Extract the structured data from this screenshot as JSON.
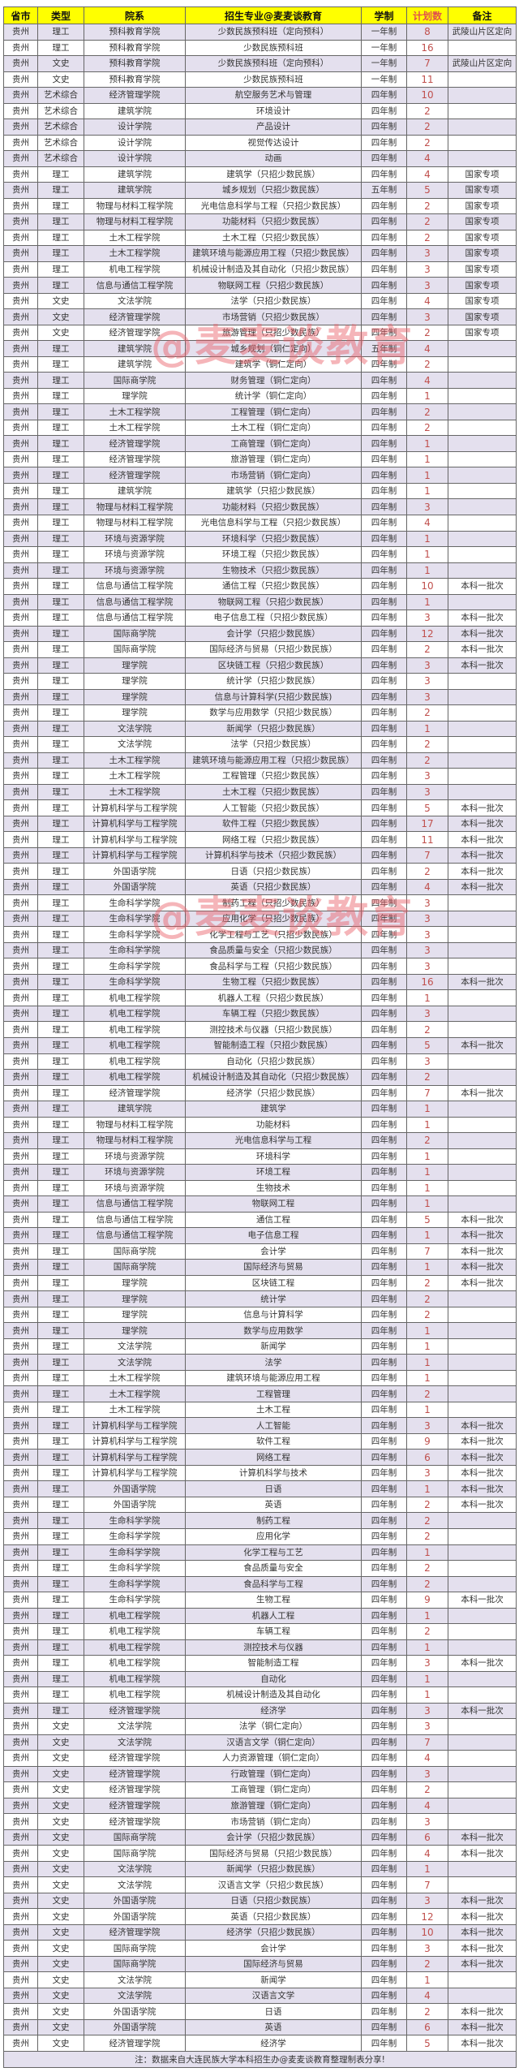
{
  "colors": {
    "header_bg": "#ffff00",
    "stripe": "#e4e0ee",
    "count": "#c0504d"
  },
  "headers": [
    "省市",
    "类型",
    "院系",
    "招生专业@麦麦谈教育",
    "学制",
    "计划数",
    "备注"
  ],
  "province": "贵州",
  "rows": [
    [
      "理工",
      "预科教育学院",
      "少数民族预科班（定向预科）",
      "一年制",
      "8",
      "武陵山片区定向"
    ],
    [
      "理工",
      "预科教育学院",
      "少数民族预科班",
      "一年制",
      "16",
      ""
    ],
    [
      "文史",
      "预科教育学院",
      "少数民族预科班（定向预科）",
      "一年制",
      "7",
      "武陵山片区定向"
    ],
    [
      "文史",
      "预科教育学院",
      "少数民族预科班",
      "一年制",
      "11",
      ""
    ],
    [
      "艺术综合",
      "经济管理学院",
      "航空服务艺术与管理",
      "四年制",
      "10",
      ""
    ],
    [
      "艺术综合",
      "建筑学院",
      "环境设计",
      "四年制",
      "2",
      ""
    ],
    [
      "艺术综合",
      "设计学院",
      "产品设计",
      "四年制",
      "2",
      ""
    ],
    [
      "艺术综合",
      "设计学院",
      "视觉传达设计",
      "四年制",
      "2",
      ""
    ],
    [
      "艺术综合",
      "设计学院",
      "动画",
      "四年制",
      "4",
      ""
    ],
    [
      "理工",
      "建筑学院",
      "建筑学（只招少数民族）",
      "四年制",
      "4",
      "国家专项"
    ],
    [
      "理工",
      "建筑学院",
      "城乡规划（只招少数民族）",
      "五年制",
      "5",
      "国家专项"
    ],
    [
      "理工",
      "物理与材料工程学院",
      "光电信息科学与工程（只招少数民族）",
      "四年制",
      "2",
      "国家专项"
    ],
    [
      "理工",
      "物理与材料工程学院",
      "功能材料（只招少数民族）",
      "四年制",
      "2",
      "国家专项"
    ],
    [
      "理工",
      "土木工程学院",
      "土木工程（只招少数民族）",
      "四年制",
      "2",
      "国家专项"
    ],
    [
      "理工",
      "土木工程学院",
      "建筑环境与能源应用工程（只招少数民族）",
      "四年制",
      "3",
      "国家专项"
    ],
    [
      "理工",
      "机电工程学院",
      "机械设计制造及其自动化（只招少数民族）",
      "四年制",
      "3",
      "国家专项"
    ],
    [
      "理工",
      "信息与通信工程学院",
      "物联网工程（只招少数民族）",
      "四年制",
      "3",
      "国家专项"
    ],
    [
      "文史",
      "文法学院",
      "法学（只招少数民族）",
      "四年制",
      "4",
      "国家专项"
    ],
    [
      "文史",
      "经济管理学院",
      "市场营销（只招少数民族）",
      "四年制",
      "3",
      "国家专项"
    ],
    [
      "文史",
      "经济管理学院",
      "旅游管理（只招少数民族）",
      "四年制",
      "2",
      "国家专项"
    ],
    [
      "理工",
      "建筑学院",
      "城乡规划（铜仁定向）",
      "五年制",
      "4",
      ""
    ],
    [
      "理工",
      "建筑学院",
      "建筑学（铜仁定向）",
      "四年制",
      "2",
      ""
    ],
    [
      "理工",
      "国际商学院",
      "财务管理（铜仁定向）",
      "四年制",
      "4",
      ""
    ],
    [
      "理工",
      "理学院",
      "统计学（铜仁定向）",
      "四年制",
      "1",
      ""
    ],
    [
      "理工",
      "土木工程学院",
      "工程管理（铜仁定向）",
      "四年制",
      "2",
      ""
    ],
    [
      "理工",
      "土木工程学院",
      "土木工程（铜仁定向）",
      "四年制",
      "2",
      ""
    ],
    [
      "理工",
      "经济管理学院",
      "工商管理（铜仁定向）",
      "四年制",
      "1",
      ""
    ],
    [
      "理工",
      "经济管理学院",
      "旅游管理（铜仁定向）",
      "四年制",
      "1",
      ""
    ],
    [
      "理工",
      "经济管理学院",
      "市场营销（铜仁定向）",
      "四年制",
      "1",
      ""
    ],
    [
      "理工",
      "建筑学院",
      "建筑学（只招少数民族）",
      "四年制",
      "1",
      ""
    ],
    [
      "理工",
      "物理与材料工程学院",
      "功能材料（只招少数民族）",
      "四年制",
      "3",
      ""
    ],
    [
      "理工",
      "物理与材料工程学院",
      "光电信息科学与工程（只招少数民族）",
      "四年制",
      "4",
      ""
    ],
    [
      "理工",
      "环境与资源学院",
      "环境科学（只招少数民族）",
      "四年制",
      "1",
      ""
    ],
    [
      "理工",
      "环境与资源学院",
      "环境工程（只招少数民族）",
      "四年制",
      "1",
      ""
    ],
    [
      "理工",
      "环境与资源学院",
      "生物技术（只招少数民族）",
      "四年制",
      "1",
      ""
    ],
    [
      "理工",
      "信息与通信工程学院",
      "通信工程（只招少数民族）",
      "四年制",
      "10",
      "本科一批次"
    ],
    [
      "理工",
      "信息与通信工程学院",
      "物联网工程（只招少数民族）",
      "四年制",
      "1",
      ""
    ],
    [
      "理工",
      "信息与通信工程学院",
      "电子信息工程（只招少数民族）",
      "四年制",
      "3",
      "本科一批次"
    ],
    [
      "理工",
      "国际商学院",
      "会计学（只招少数民族）",
      "四年制",
      "12",
      "本科一批次"
    ],
    [
      "理工",
      "国际商学院",
      "国际经济与贸易（只招少数民族）",
      "四年制",
      "2",
      "本科一批次"
    ],
    [
      "理工",
      "理学院",
      "区块链工程（只招少数民族）",
      "四年制",
      "3",
      "本科一批次"
    ],
    [
      "理工",
      "理学院",
      "统计学（只招少数民族）",
      "四年制",
      "3",
      ""
    ],
    [
      "理工",
      "理学院",
      "信息与计算科学(只招少数民族)",
      "四年制",
      "3",
      ""
    ],
    [
      "理工",
      "理学院",
      "数学与应用数学（只招少数民族）",
      "四年制",
      "2",
      ""
    ],
    [
      "理工",
      "文法学院",
      "新闻学（只招少数民族）",
      "四年制",
      "1",
      ""
    ],
    [
      "理工",
      "文法学院",
      "法学（只招少数民族）",
      "四年制",
      "2",
      ""
    ],
    [
      "理工",
      "土木工程学院",
      "建筑环境与能源应用工程（只招少数民族）",
      "四年制",
      "2",
      ""
    ],
    [
      "理工",
      "土木工程学院",
      "工程管理（只招少数民族）",
      "四年制",
      "3",
      ""
    ],
    [
      "理工",
      "土木工程学院",
      "土木工程（只招少数民族）",
      "四年制",
      "3",
      ""
    ],
    [
      "理工",
      "计算机科学与工程学院",
      "人工智能（只招少数民族）",
      "四年制",
      "5",
      "本科一批次"
    ],
    [
      "理工",
      "计算机科学与工程学院",
      "软件工程（只招少数民族）",
      "四年制",
      "17",
      "本科一批次"
    ],
    [
      "理工",
      "计算机科学与工程学院",
      "网络工程（只招少数民族）",
      "四年制",
      "11",
      "本科一批次"
    ],
    [
      "理工",
      "计算机科学与工程学院",
      "计算机科学与技术（只招少数民族）",
      "四年制",
      "7",
      "本科一批次"
    ],
    [
      "理工",
      "外国语学院",
      "日语（只招少数民族）",
      "四年制",
      "2",
      "本科一批次"
    ],
    [
      "理工",
      "外国语学院",
      "英语（只招少数民族）",
      "四年制",
      "4",
      "本科一批次"
    ],
    [
      "理工",
      "生命科学学院",
      "制药工程（只招少数民族）",
      "四年制",
      "3",
      ""
    ],
    [
      "理工",
      "生命科学学院",
      "应用化学（只招少数民族）",
      "四年制",
      "3",
      ""
    ],
    [
      "理工",
      "生命科学学院",
      "化学工程与工艺（只招少数民族）",
      "四年制",
      "3",
      ""
    ],
    [
      "理工",
      "生命科学学院",
      "食品质量与安全（只招少数民族）",
      "四年制",
      "3",
      ""
    ],
    [
      "理工",
      "生命科学学院",
      "食品科学与工程（只招少数民族）",
      "四年制",
      "3",
      ""
    ],
    [
      "理工",
      "生命科学学院",
      "生物工程（只招少数民族）",
      "四年制",
      "16",
      "本科一批次"
    ],
    [
      "理工",
      "机电工程学院",
      "机器人工程（只招少数民族）",
      "四年制",
      "1",
      ""
    ],
    [
      "理工",
      "机电工程学院",
      "车辆工程（只招少数民族）",
      "四年制",
      "3",
      ""
    ],
    [
      "理工",
      "机电工程学院",
      "测控技术与仪器（只招少数民族）",
      "四年制",
      "2",
      ""
    ],
    [
      "理工",
      "机电工程学院",
      "智能制造工程（只招少数民族）",
      "四年制",
      "5",
      "本科一批次"
    ],
    [
      "理工",
      "机电工程学院",
      "自动化（只招少数民族）",
      "四年制",
      "3",
      ""
    ],
    [
      "理工",
      "机电工程学院",
      "机械设计制造及其自动化（只招少数民族）",
      "四年制",
      "2",
      ""
    ],
    [
      "理工",
      "经济管理学院",
      "经济学（只招少数民族）",
      "四年制",
      "7",
      "本科一批次"
    ],
    [
      "理工",
      "建筑学院",
      "建筑学",
      "四年制",
      "1",
      ""
    ],
    [
      "理工",
      "物理与材料工程学院",
      "功能材料",
      "四年制",
      "1",
      ""
    ],
    [
      "理工",
      "物理与材料工程学院",
      "光电信息科学与工程",
      "四年制",
      "2",
      ""
    ],
    [
      "理工",
      "环境与资源学院",
      "环境科学",
      "四年制",
      "1",
      ""
    ],
    [
      "理工",
      "环境与资源学院",
      "环境工程",
      "四年制",
      "1",
      ""
    ],
    [
      "理工",
      "环境与资源学院",
      "生物技术",
      "四年制",
      "1",
      ""
    ],
    [
      "理工",
      "信息与通信工程学院",
      "物联网工程",
      "四年制",
      "1",
      ""
    ],
    [
      "理工",
      "信息与通信工程学院",
      "通信工程",
      "四年制",
      "5",
      "本科一批次"
    ],
    [
      "理工",
      "信息与通信工程学院",
      "电子信息工程",
      "四年制",
      "1",
      "本科一批次"
    ],
    [
      "理工",
      "国际商学院",
      "会计学",
      "四年制",
      "7",
      "本科一批次"
    ],
    [
      "理工",
      "国际商学院",
      "国际经济与贸易",
      "四年制",
      "1",
      "本科一批次"
    ],
    [
      "理工",
      "理学院",
      "区块链工程",
      "四年制",
      "2",
      "本科一批次"
    ],
    [
      "理工",
      "理学院",
      "统计学",
      "四年制",
      "2",
      ""
    ],
    [
      "理工",
      "理学院",
      "信息与计算科学",
      "四年制",
      "2",
      ""
    ],
    [
      "理工",
      "理学院",
      "数学与应用数学",
      "四年制",
      "1",
      ""
    ],
    [
      "理工",
      "文法学院",
      "新闻学",
      "四年制",
      "1",
      ""
    ],
    [
      "理工",
      "文法学院",
      "法学",
      "四年制",
      "1",
      ""
    ],
    [
      "理工",
      "土木工程学院",
      "建筑环境与能源应用工程",
      "四年制",
      "1",
      ""
    ],
    [
      "理工",
      "土木工程学院",
      "工程管理",
      "四年制",
      "2",
      ""
    ],
    [
      "理工",
      "土木工程学院",
      "土木工程",
      "四年制",
      "1",
      ""
    ],
    [
      "理工",
      "计算机科学与工程学院",
      "人工智能",
      "四年制",
      "3",
      "本科一批次"
    ],
    [
      "理工",
      "计算机科学与工程学院",
      "软件工程",
      "四年制",
      "9",
      "本科一批次"
    ],
    [
      "理工",
      "计算机科学与工程学院",
      "网络工程",
      "四年制",
      "6",
      "本科一批次"
    ],
    [
      "理工",
      "计算机科学与工程学院",
      "计算机科学与技术",
      "四年制",
      "3",
      "本科一批次"
    ],
    [
      "理工",
      "外国语学院",
      "日语",
      "四年制",
      "1",
      "本科一批次"
    ],
    [
      "理工",
      "外国语学院",
      "英语",
      "四年制",
      "2",
      "本科一批次"
    ],
    [
      "理工",
      "生命科学学院",
      "制药工程",
      "四年制",
      "2",
      ""
    ],
    [
      "理工",
      "生命科学学院",
      "应用化学",
      "四年制",
      "2",
      ""
    ],
    [
      "理工",
      "生命科学学院",
      "化学工程与工艺",
      "四年制",
      "1",
      ""
    ],
    [
      "理工",
      "生命科学学院",
      "食品质量与安全",
      "四年制",
      "2",
      ""
    ],
    [
      "理工",
      "生命科学学院",
      "食品科学与工程",
      "四年制",
      "2",
      ""
    ],
    [
      "理工",
      "生命科学学院",
      "生物工程",
      "四年制",
      "9",
      "本科一批次"
    ],
    [
      "理工",
      "机电工程学院",
      "机器人工程",
      "四年制",
      "1",
      ""
    ],
    [
      "理工",
      "机电工程学院",
      "车辆工程",
      "四年制",
      "2",
      ""
    ],
    [
      "理工",
      "机电工程学院",
      "测控技术与仪器",
      "四年制",
      "1",
      ""
    ],
    [
      "理工",
      "机电工程学院",
      "智能制造工程",
      "四年制",
      "3",
      "本科一批次"
    ],
    [
      "理工",
      "机电工程学院",
      "自动化",
      "四年制",
      "1",
      ""
    ],
    [
      "理工",
      "机电工程学院",
      "机械设计制造及其自动化",
      "四年制",
      "1",
      ""
    ],
    [
      "理工",
      "经济管理学院",
      "经济学",
      "四年制",
      "3",
      "本科一批次"
    ],
    [
      "文史",
      "文法学院",
      "法学（铜仁定向）",
      "四年制",
      "3",
      ""
    ],
    [
      "文史",
      "文法学院",
      "汉语言文学（铜仁定向）",
      "四年制",
      "7",
      ""
    ],
    [
      "文史",
      "经济管理学院",
      "人力资源管理（铜仁定向）",
      "四年制",
      "4",
      ""
    ],
    [
      "文史",
      "经济管理学院",
      "行政管理（铜仁定向）",
      "四年制",
      "3",
      ""
    ],
    [
      "文史",
      "经济管理学院",
      "工商管理（铜仁定向）",
      "四年制",
      "2",
      ""
    ],
    [
      "文史",
      "经济管理学院",
      "旅游管理（铜仁定向）",
      "四年制",
      "4",
      ""
    ],
    [
      "文史",
      "经济管理学院",
      "市场营销（铜仁定向）",
      "四年制",
      "3",
      ""
    ],
    [
      "文史",
      "国际商学院",
      "会计学（只招少数民族）",
      "四年制",
      "6",
      "本科一批次"
    ],
    [
      "文史",
      "国际商学院",
      "国际经济与贸易（只招少数民族）",
      "四年制",
      "4",
      "本科一批次"
    ],
    [
      "文史",
      "文法学院",
      "新闻学（只招少数民族）",
      "四年制",
      "1",
      ""
    ],
    [
      "文史",
      "文法学院",
      "汉语言文学（只招少数民族）",
      "四年制",
      "7",
      ""
    ],
    [
      "文史",
      "外国语学院",
      "日语（只招少数民族）",
      "四年制",
      "3",
      "本科一批次"
    ],
    [
      "文史",
      "外国语学院",
      "英语（只招少数民族）",
      "四年制",
      "12",
      "本科一批次"
    ],
    [
      "文史",
      "经济管理学院",
      "经济学（只招少数民族）",
      "四年制",
      "10",
      "本科一批次"
    ],
    [
      "文史",
      "国际商学院",
      "会计学",
      "四年制",
      "3",
      "本科一批次"
    ],
    [
      "文史",
      "国际商学院",
      "国际经济与贸易",
      "四年制",
      "2",
      "本科一批次"
    ],
    [
      "文史",
      "文法学院",
      "新闻学",
      "四年制",
      "1",
      ""
    ],
    [
      "文史",
      "文法学院",
      "汉语言文学",
      "四年制",
      "4",
      ""
    ],
    [
      "文史",
      "外国语学院",
      "日语",
      "四年制",
      "2",
      "本科一批次"
    ],
    [
      "文史",
      "外国语学院",
      "英语",
      "四年制",
      "6",
      "本科一批次"
    ],
    [
      "文史",
      "经济管理学院",
      "经济学",
      "四年制",
      "5",
      "本科一批次"
    ]
  ],
  "footer": "注：数据来自大连民族大学本科招生办@麦麦谈教育整理制表分享!",
  "watermark": "@麦麦谈教育"
}
